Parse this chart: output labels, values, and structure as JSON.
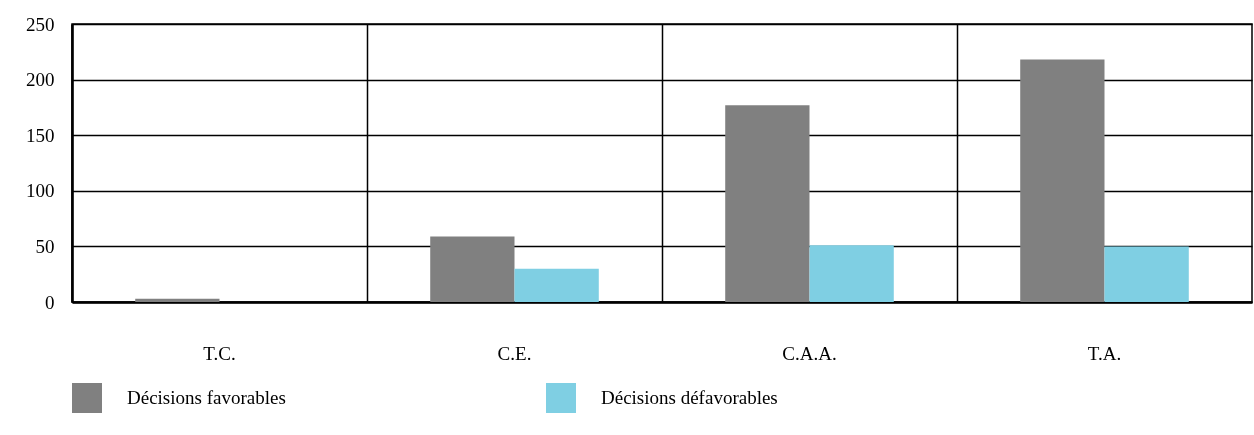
{
  "chart_data": {
    "type": "bar",
    "categories": [
      "T.C.",
      "C.E.",
      "C.A.A.",
      "T.A."
    ],
    "series": [
      {
        "name": "Décisions favorables",
        "color": "#808080",
        "values": [
          3,
          59,
          177,
          218
        ]
      },
      {
        "name": "Décisions défavorables",
        "color": "#7fcfe3",
        "values": [
          0,
          30,
          51,
          50
        ]
      }
    ],
    "ylim": [
      0,
      250
    ],
    "yticks": [
      0,
      50,
      100,
      150,
      200,
      250
    ],
    "grid": true,
    "legend": "bottom"
  }
}
